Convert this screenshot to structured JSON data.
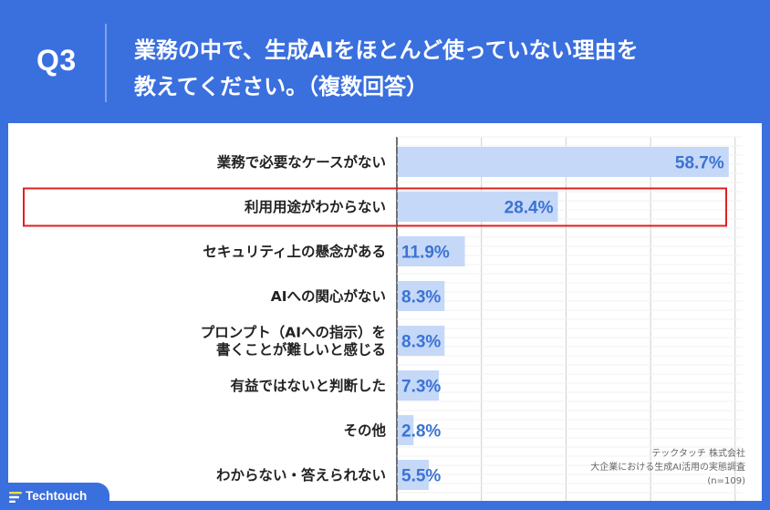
{
  "header": {
    "question_number": "Q3",
    "question_text": "業務の中で、生成AIをほとんど使っていない理由を\n教えてください。（複数回答）"
  },
  "credit": {
    "company": "テックタッチ 株式会社",
    "survey": "大企業における生成AI活用の実態調査",
    "sample": "(n=109)"
  },
  "logo": {
    "text": "Techtouch",
    "icon": "techtouch-logo-icon"
  },
  "colors": {
    "background": "#3a6fde",
    "bar": "#c5d8f7",
    "value_text": "#3b73d4",
    "highlight_box": "#e02020"
  },
  "chart_data": {
    "type": "bar",
    "orientation": "horizontal",
    "categories": [
      "業務で必要なケースがない",
      "利用用途がわからない",
      "セキュリティ上の懸念がある",
      "AIへの関心がない",
      "プロンプト（AIへの指示）を\n書くことが難しいと感じる",
      "有益ではないと判断した",
      "その他",
      "わからない・答えられない"
    ],
    "values": [
      58.7,
      28.4,
      11.9,
      8.3,
      8.3,
      7.3,
      2.8,
      5.5
    ],
    "value_labels": [
      "58.7%",
      "28.4%",
      "11.9%",
      "8.3%",
      "8.3%",
      "7.3%",
      "2.8%",
      "5.5%"
    ],
    "xlim": [
      0,
      60
    ],
    "grid": true,
    "highlighted_category": "利用用途がわからない"
  }
}
